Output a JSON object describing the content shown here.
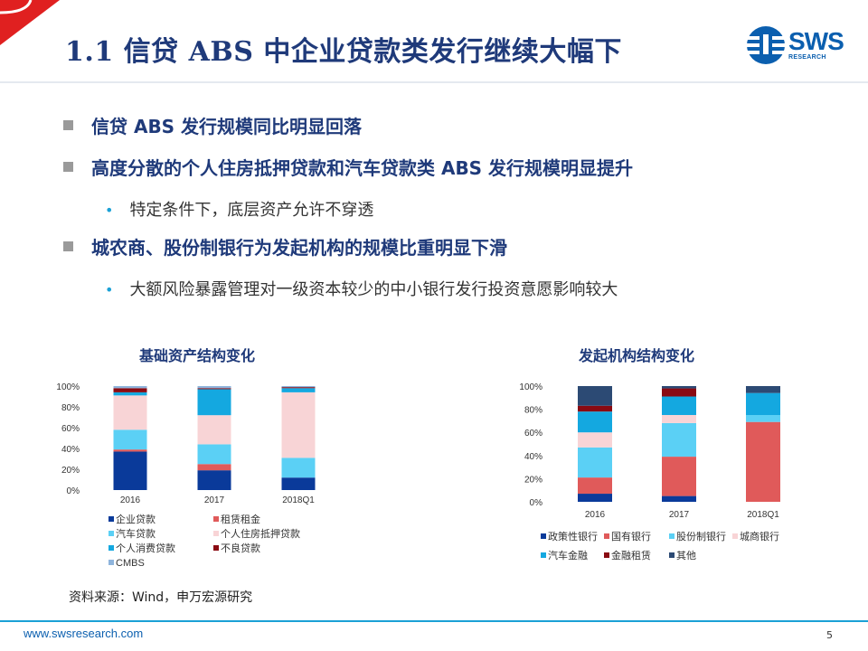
{
  "header": {
    "title": "1.1 信贷 ABS 中企业贷款类发行继续大幅下",
    "logo_text": "SWS",
    "logo_sub": "RESEARCH"
  },
  "bullets": [
    {
      "text": "信贷 ABS 发行规模同比明显回落"
    },
    {
      "text": "高度分散的个人住房抵押贷款和汽车贷款类 ABS 发行规模明显提升"
    },
    {
      "text": "特定条件下，底层资产允许不穿透"
    },
    {
      "text": "城农商、股份制银行为发起机构的规模比重明显下滑"
    },
    {
      "text": "大额风险暴露管理对一级资本较少的中小银行发行投资意愿影响较大"
    }
  ],
  "chart_titles": [
    "基础资产结构变化",
    "发起机构结构变化"
  ],
  "source": "资料来源：Wind，申万宏源研究",
  "footer": {
    "url": "www.swsresearch.com",
    "page": "5"
  },
  "colors": {
    "accent": "#1BA1D6",
    "title": "#1F3A7A",
    "red_corner": "#E02020"
  },
  "chart_data": [
    {
      "type": "bar",
      "stacked": true,
      "categories": [
        "2016",
        "2017",
        "2018Q1"
      ],
      "ylim": [
        0,
        100
      ],
      "yticks": [
        "0%",
        "20%",
        "40%",
        "60%",
        "80%",
        "100%"
      ],
      "series": [
        {
          "name": "企业贷款",
          "color": "#0A3A9A",
          "values": [
            37,
            19,
            12
          ]
        },
        {
          "name": "租赁租金",
          "color": "#E05A5A",
          "values": [
            2,
            6,
            0
          ]
        },
        {
          "name": "汽车贷款",
          "color": "#5BD0F5",
          "values": [
            19,
            19,
            19
          ]
        },
        {
          "name": "个人住房抵押贷款",
          "color": "#F8D4D6",
          "values": [
            33,
            28,
            63
          ]
        },
        {
          "name": "个人消费贷款",
          "color": "#14A8E0",
          "values": [
            3,
            25,
            4
          ]
        },
        {
          "name": "不良贷款",
          "color": "#8A0A12",
          "values": [
            4,
            1,
            1
          ]
        },
        {
          "name": "CMBS",
          "color": "#8EB4DC",
          "values": [
            2,
            2,
            1
          ]
        }
      ],
      "legend_position": "bottom"
    },
    {
      "type": "bar",
      "stacked": true,
      "categories": [
        "2016",
        "2017",
        "2018Q1"
      ],
      "ylim": [
        0,
        100
      ],
      "yticks": [
        "0%",
        "20%",
        "40%",
        "60%",
        "80%",
        "100%"
      ],
      "series": [
        {
          "name": "政策性银行",
          "color": "#0A3A9A",
          "values": [
            7,
            5,
            0
          ]
        },
        {
          "name": "国有银行",
          "color": "#E05A5A",
          "values": [
            14,
            34,
            69
          ]
        },
        {
          "name": "股份制银行",
          "color": "#5BD0F5",
          "values": [
            26,
            29,
            6
          ]
        },
        {
          "name": "城商银行",
          "color": "#F8D4D6",
          "values": [
            13,
            7,
            0
          ]
        },
        {
          "name": "汽车金融",
          "color": "#14A8E0",
          "values": [
            18,
            16,
            19
          ]
        },
        {
          "name": "金融租赁",
          "color": "#8A0A12",
          "values": [
            5,
            7,
            0
          ]
        },
        {
          "name": "其他",
          "color": "#2C4A74",
          "values": [
            17,
            2,
            6
          ]
        }
      ],
      "legend_position": "bottom"
    }
  ]
}
